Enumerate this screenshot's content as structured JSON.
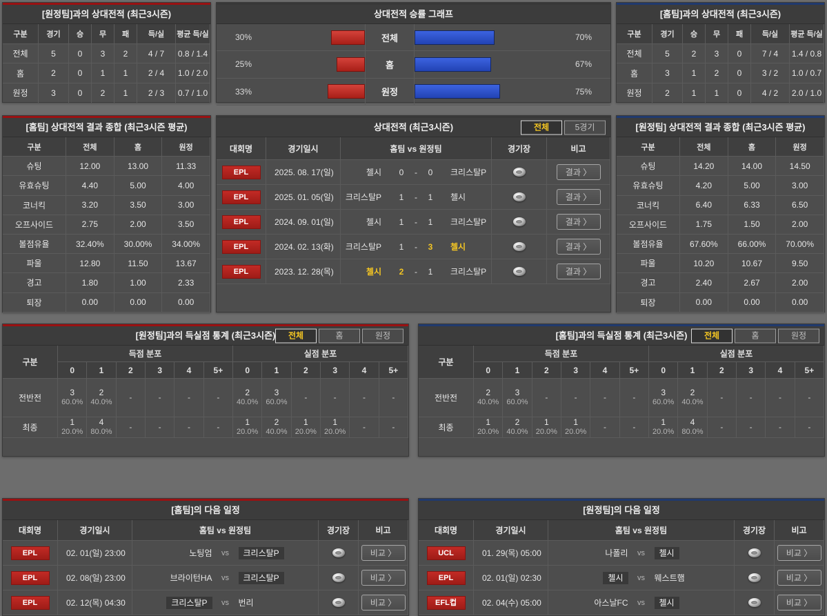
{
  "colors": {
    "page_bg": "#6d6d6d",
    "panel_bg": "#4d4d4d",
    "header_bg": "#3c3c3c",
    "accent_red": "#9a1112",
    "accent_blue": "#203a6e",
    "bar_red": "#c03028",
    "bar_blue": "#2a50c8",
    "badge_red": "#b0231e",
    "active_tab_text": "#f3c523",
    "winner_text": "#f3c523"
  },
  "chart_data": {
    "type": "bar",
    "orientation": "horizontal",
    "unit": "%",
    "legend": "none",
    "title": "상대전적 승률 그래프",
    "categories": [
      "전체",
      "홈",
      "원정"
    ],
    "series": [
      {
        "name": "red_left",
        "values": [
          30,
          25,
          33
        ]
      },
      {
        "name": "blue_right",
        "values": [
          70,
          67,
          75
        ]
      }
    ]
  },
  "h2h_away": {
    "title": "[원정팀]과의 상대전적 (최근3시즌)",
    "headers": [
      "구분",
      "경기",
      "승",
      "무",
      "패",
      "득/실",
      "평균 득/실"
    ],
    "rows": [
      [
        "전체",
        "5",
        "0",
        "3",
        "2",
        "4 / 7",
        "0.8 / 1.4"
      ],
      [
        "홈",
        "2",
        "0",
        "1",
        "1",
        "2 / 4",
        "1.0 / 2.0"
      ],
      [
        "원정",
        "3",
        "0",
        "2",
        "1",
        "2 / 3",
        "0.7 / 1.0"
      ]
    ]
  },
  "win_chart": {
    "title": "상대전적 승률 그래프"
  },
  "h2h_home": {
    "title": "[홈팀]과의 상대전적 (최근3시즌)",
    "headers": [
      "구분",
      "경기",
      "승",
      "무",
      "패",
      "득/실",
      "평균 득/실"
    ],
    "rows": [
      [
        "전체",
        "5",
        "2",
        "3",
        "0",
        "7 / 4",
        "1.4 / 0.8"
      ],
      [
        "홈",
        "3",
        "1",
        "2",
        "0",
        "3 / 2",
        "1.0 / 0.7"
      ],
      [
        "원정",
        "2",
        "1",
        "1",
        "0",
        "4 / 2",
        "2.0 / 1.0"
      ]
    ]
  },
  "home_summary": {
    "title": "[홈팀] 상대전적 결과 종합 (최근3시즌 평균)",
    "headers": [
      "구분",
      "전체",
      "홈",
      "원정"
    ],
    "rows": [
      [
        "슈팅",
        "12.00",
        "13.00",
        "11.33"
      ],
      [
        "유효슈팅",
        "4.40",
        "5.00",
        "4.00"
      ],
      [
        "코너킥",
        "3.20",
        "3.50",
        "3.00"
      ],
      [
        "오프사이드",
        "2.75",
        "2.00",
        "3.50"
      ],
      [
        "볼점유율",
        "32.40%",
        "30.00%",
        "34.00%"
      ],
      [
        "파울",
        "12.80",
        "11.50",
        "13.67"
      ],
      [
        "경고",
        "1.80",
        "1.00",
        "2.33"
      ],
      [
        "퇴장",
        "0.00",
        "0.00",
        "0.00"
      ]
    ]
  },
  "away_summary": {
    "title": "[원정팀] 상대전적 결과 종합 (최근3시즌 평균)",
    "headers": [
      "구분",
      "전체",
      "홈",
      "원정"
    ],
    "rows": [
      [
        "슈팅",
        "14.20",
        "14.00",
        "14.50"
      ],
      [
        "유효슈팅",
        "4.20",
        "5.00",
        "3.00"
      ],
      [
        "코너킥",
        "6.40",
        "6.33",
        "6.50"
      ],
      [
        "오프사이드",
        "1.75",
        "1.50",
        "2.00"
      ],
      [
        "볼점유율",
        "67.60%",
        "66.00%",
        "70.00%"
      ],
      [
        "파울",
        "10.20",
        "10.67",
        "9.50"
      ],
      [
        "경고",
        "2.40",
        "2.67",
        "2.00"
      ],
      [
        "퇴장",
        "0.00",
        "0.00",
        "0.00"
      ]
    ]
  },
  "matches": {
    "title": "상대전적 (최근3시즌)",
    "tabs": [
      {
        "label": "전체",
        "active": true
      },
      {
        "label": "5경기",
        "active": false
      }
    ],
    "headers": [
      "대회명",
      "경기일시",
      "홈팀  vs  원정팀",
      "경기장",
      "비고"
    ],
    "button_label": "결과 〉",
    "score_separator": "-",
    "rows": [
      {
        "league": "EPL",
        "date": "2025. 08. 17(일)",
        "home": "첼시",
        "away": "크리스탈P",
        "hs": "0",
        "as": "0",
        "hw": false,
        "aw": false
      },
      {
        "league": "EPL",
        "date": "2025. 01. 05(일)",
        "home": "크리스탈P",
        "away": "첼시",
        "hs": "1",
        "as": "1",
        "hw": false,
        "aw": false
      },
      {
        "league": "EPL",
        "date": "2024. 09. 01(일)",
        "home": "첼시",
        "away": "크리스탈P",
        "hs": "1",
        "as": "1",
        "hw": false,
        "aw": false
      },
      {
        "league": "EPL",
        "date": "2024. 02. 13(화)",
        "home": "크리스탈P",
        "away": "첼시",
        "hs": "1",
        "as": "3",
        "hw": false,
        "aw": true
      },
      {
        "league": "EPL",
        "date": "2023. 12. 28(목)",
        "home": "첼시",
        "away": "크리스탈P",
        "hs": "2",
        "as": "1",
        "hw": true,
        "aw": false
      }
    ]
  },
  "goal_stats_vs_away": {
    "title": "[원정팀]과의 득실점 통계 (최근3시즌)",
    "tabs": [
      {
        "label": "전체",
        "active": true
      },
      {
        "label": "홈",
        "active": false
      },
      {
        "label": "원정",
        "active": false
      }
    ],
    "corner_header": "구분",
    "group_headers": [
      "득점 분포",
      "실점 분포"
    ],
    "score_headers": [
      "0",
      "1",
      "2",
      "3",
      "4",
      "5+"
    ],
    "empty": "-",
    "rows": [
      {
        "label": "전반전",
        "goals": [
          {
            "c": "3",
            "p": "60.0%"
          },
          {
            "c": "2",
            "p": "40.0%"
          },
          null,
          null,
          null,
          null
        ],
        "conceded": [
          {
            "c": "2",
            "p": "40.0%"
          },
          {
            "c": "3",
            "p": "60.0%"
          },
          null,
          null,
          null,
          null
        ]
      },
      {
        "label": "최종",
        "goals": [
          {
            "c": "1",
            "p": "20.0%"
          },
          {
            "c": "4",
            "p": "80.0%"
          },
          null,
          null,
          null,
          null
        ],
        "conceded": [
          {
            "c": "1",
            "p": "20.0%"
          },
          {
            "c": "2",
            "p": "40.0%"
          },
          {
            "c": "1",
            "p": "20.0%"
          },
          {
            "c": "1",
            "p": "20.0%"
          },
          null,
          null
        ]
      }
    ]
  },
  "goal_stats_vs_home": {
    "title": "[홈팀]과의 득실점 통계 (최근3시즌)",
    "tabs": [
      {
        "label": "전체",
        "active": true
      },
      {
        "label": "홈",
        "active": false
      },
      {
        "label": "원정",
        "active": false
      }
    ],
    "corner_header": "구분",
    "group_headers": [
      "득점 분포",
      "실점 분포"
    ],
    "score_headers": [
      "0",
      "1",
      "2",
      "3",
      "4",
      "5+"
    ],
    "empty": "-",
    "rows": [
      {
        "label": "전반전",
        "goals": [
          {
            "c": "2",
            "p": "40.0%"
          },
          {
            "c": "3",
            "p": "60.0%"
          },
          null,
          null,
          null,
          null
        ],
        "conceded": [
          {
            "c": "3",
            "p": "60.0%"
          },
          {
            "c": "2",
            "p": "40.0%"
          },
          null,
          null,
          null,
          null
        ]
      },
      {
        "label": "최종",
        "goals": [
          {
            "c": "1",
            "p": "20.0%"
          },
          {
            "c": "2",
            "p": "40.0%"
          },
          {
            "c": "1",
            "p": "20.0%"
          },
          {
            "c": "1",
            "p": "20.0%"
          },
          null,
          null
        ],
        "conceded": [
          {
            "c": "1",
            "p": "20.0%"
          },
          {
            "c": "4",
            "p": "80.0%"
          },
          null,
          null,
          null,
          null
        ]
      }
    ]
  },
  "home_schedule": {
    "title": "[홈팀]의 다음 일정",
    "headers": [
      "대회명",
      "경기일시",
      "홈팀  vs  원정팀",
      "경기장",
      "비고"
    ],
    "vs_label": "vs",
    "button_label": "비교 〉",
    "rows": [
      {
        "league": "EPL",
        "date": "02. 01(일) 23:00",
        "home": "노팅엄",
        "away": "크리스탈P",
        "hh": false,
        "ah": true
      },
      {
        "league": "EPL",
        "date": "02. 08(일) 23:00",
        "home": "브라이턴HA",
        "away": "크리스탈P",
        "hh": false,
        "ah": true
      },
      {
        "league": "EPL",
        "date": "02. 12(목) 04:30",
        "home": "크리스탈P",
        "away": "번리",
        "hh": true,
        "ah": false
      }
    ]
  },
  "away_schedule": {
    "title": "[원정팀]의 다음 일정",
    "headers": [
      "대회명",
      "경기일시",
      "홈팀  vs  원정팀",
      "경기장",
      "비고"
    ],
    "vs_label": "vs",
    "button_label": "비교 〉",
    "rows": [
      {
        "league": "UCL",
        "date": "01. 29(목) 05:00",
        "home": "나폴리",
        "away": "첼시",
        "hh": false,
        "ah": true
      },
      {
        "league": "EPL",
        "date": "02. 01(일) 02:30",
        "home": "첼시",
        "away": "웨스트햄",
        "hh": true,
        "ah": false
      },
      {
        "league": "EFL컵",
        "date": "02. 04(수) 05:00",
        "home": "아스날FC",
        "away": "첼시",
        "hh": false,
        "ah": true
      }
    ]
  }
}
